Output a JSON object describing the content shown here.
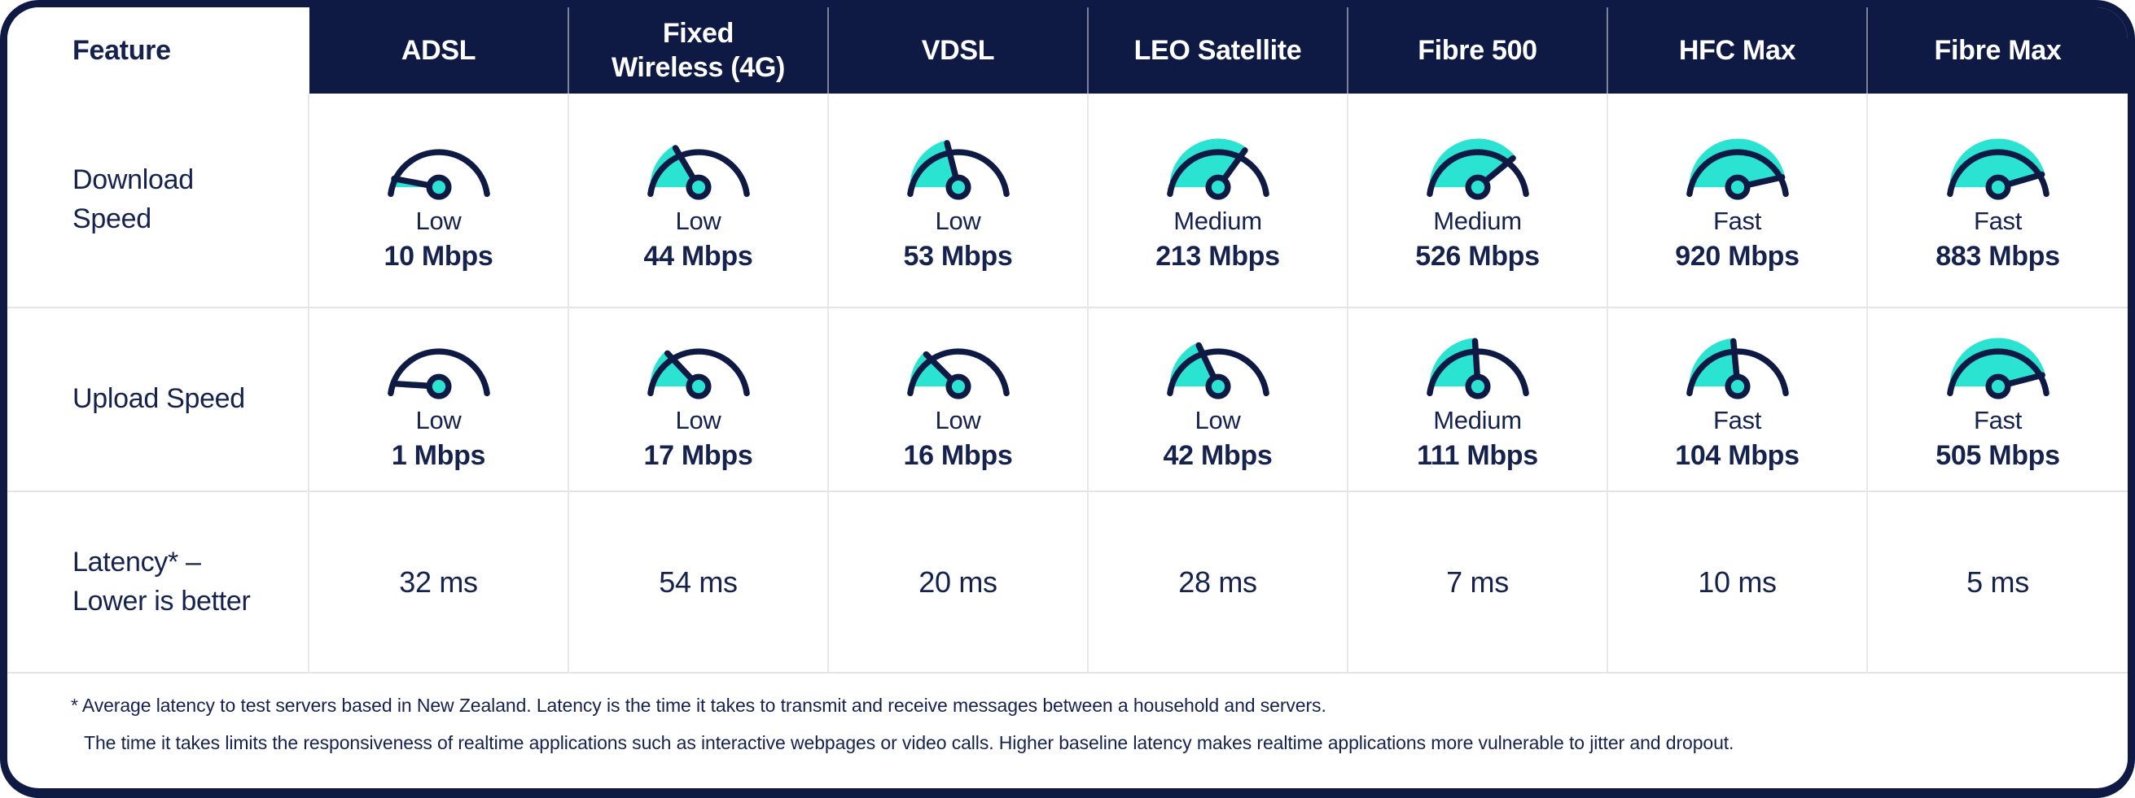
{
  "colors": {
    "navy": "#0E1A44",
    "teal": "#2AE4D1",
    "body_text": "#16224E",
    "grid_line": "#E2E4EA",
    "header_divider": "rgba(255,255,255,0.45)"
  },
  "table": {
    "feature_header": "Feature",
    "columns": [
      "ADSL",
      "Fixed\nWireless (4G)",
      "VDSL",
      "LEO Satellite",
      "Fibre 500",
      "HFC Max",
      "Fibre Max"
    ],
    "rows": [
      {
        "label": "Download\nSpeed",
        "cells": [
          {
            "tier": "Low",
            "value": "10 Mbps",
            "gauge": 0.06
          },
          {
            "tier": "Low",
            "value": "44 Mbps",
            "gauge": 0.33
          },
          {
            "tier": "Low",
            "value": "53 Mbps",
            "gauge": 0.42
          },
          {
            "tier": "Medium",
            "value": "213 Mbps",
            "gauge": 0.7
          },
          {
            "tier": "Medium",
            "value": "526 Mbps",
            "gauge": 0.78
          },
          {
            "tier": "Fast",
            "value": "920 Mbps",
            "gauge": 0.93
          },
          {
            "tier": "Fast",
            "value": "883 Mbps",
            "gauge": 0.91
          }
        ]
      },
      {
        "label": "Upload Speed",
        "cells": [
          {
            "tier": "Low",
            "value": "1 Mbps",
            "gauge": 0.02
          },
          {
            "tier": "Low",
            "value": "17 Mbps",
            "gauge": 0.26
          },
          {
            "tier": "Low",
            "value": "16 Mbps",
            "gauge": 0.25
          },
          {
            "tier": "Low",
            "value": "42 Mbps",
            "gauge": 0.36
          },
          {
            "tier": "Medium",
            "value": "111 Mbps",
            "gauge": 0.48
          },
          {
            "tier": "Fast",
            "value": "104 Mbps",
            "gauge": 0.47
          },
          {
            "tier": "Fast",
            "value": "505 Mbps",
            "gauge": 0.92
          }
        ]
      },
      {
        "label": "Latency* –\nLower is better",
        "cells": [
          {
            "value": "32 ms"
          },
          {
            "value": "54 ms"
          },
          {
            "value": "20 ms"
          },
          {
            "value": "28 ms"
          },
          {
            "value": "7 ms"
          },
          {
            "value": "10 ms"
          },
          {
            "value": "5 ms"
          }
        ]
      }
    ],
    "footnotes": [
      "* Average latency to test servers based in New Zealand.  Latency is the time it takes to transmit and receive messages between a household and servers.",
      "The time it takes limits the responsiveness of realtime applications such as interactive webpages or video calls.  Higher baseline latency makes realtime applications more vulnerable to jitter and dropout."
    ]
  },
  "chart_data": {
    "type": "table",
    "title": "Broadband technology feature comparison",
    "columns": [
      "ADSL",
      "Fixed Wireless (4G)",
      "VDSL",
      "LEO Satellite",
      "Fibre 500",
      "HFC Max",
      "Fibre Max"
    ],
    "rows": [
      {
        "feature": "Download Speed",
        "unit": "Mbps",
        "tiers": [
          "Low",
          "Low",
          "Low",
          "Medium",
          "Medium",
          "Fast",
          "Fast"
        ],
        "values": [
          10,
          44,
          53,
          213,
          526,
          920,
          883
        ]
      },
      {
        "feature": "Upload Speed",
        "unit": "Mbps",
        "tiers": [
          "Low",
          "Low",
          "Low",
          "Low",
          "Medium",
          "Fast",
          "Fast"
        ],
        "values": [
          1,
          17,
          16,
          42,
          111,
          104,
          505
        ]
      },
      {
        "feature": "Latency* – Lower is better",
        "unit": "ms",
        "values": [
          32,
          54,
          20,
          28,
          7,
          10,
          5
        ]
      }
    ],
    "footnotes": [
      "* Average latency to test servers based in New Zealand.  Latency is the time it takes to transmit and receive messages between a household and servers.",
      "The time it takes limits the responsiveness of realtime applications such as interactive webpages or video calls.  Higher baseline latency makes realtime applications more vulnerable to jitter and dropout."
    ]
  }
}
